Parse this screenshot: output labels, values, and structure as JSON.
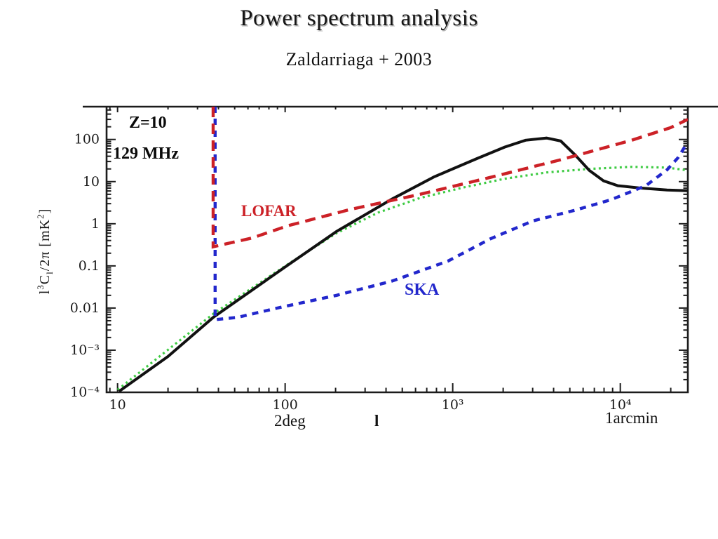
{
  "slide": {
    "title": "Power spectrum analysis",
    "subtitle": "Zaldarriaga + 2003"
  },
  "annotations": {
    "redshift": "Z=10",
    "frequency": "129 MHz",
    "lofar_label": "LOFAR",
    "ska_label": "SKA",
    "two_deg_scale": "2deg",
    "x_symbol": "l",
    "one_arcmin_scale": "1arcmin"
  },
  "colors": {
    "signal": "#111111",
    "lofar": "#cc2127",
    "ska": "#2227cc",
    "green_dotted": "#3ecb43",
    "axis": "#1c1c1c"
  },
  "chart_data": {
    "type": "line",
    "title": "",
    "xlabel": "l",
    "ylabel": "l^3 C_l / 2pi [mK^2]",
    "ylabel_parts": {
      "p0": "l",
      "p1": "3",
      "p2": "C",
      "p3": "l",
      "p4": "/2π  [mK",
      "p5": "2",
      "p6": "]"
    },
    "x_axis": {
      "scale": "log",
      "min": 8.6,
      "max": 25300,
      "major_ticks": [
        10,
        100,
        1000,
        10000
      ],
      "major_tick_labels": [
        "10",
        "100",
        "10³",
        "10⁴"
      ]
    },
    "y_axis": {
      "scale": "log",
      "min": 0.0001,
      "max": 600,
      "major_ticks": [
        100,
        10,
        1,
        0.1,
        0.01,
        0.001,
        0.0001
      ],
      "major_tick_labels": [
        "100",
        "10",
        "1",
        "0.1",
        "0.01",
        "10⁻³",
        "10⁻⁴"
      ]
    },
    "series": [
      {
        "name": "green-dotted-spectrum",
        "color": "#3ecb43",
        "style": "dot",
        "width": 3.2,
        "points": [
          [
            10,
            0.000115
          ],
          [
            37.4,
            0.0074
          ],
          [
            104,
            0.11
          ],
          [
            203,
            0.6
          ],
          [
            360,
            1.85
          ],
          [
            640,
            4.1
          ],
          [
            1150,
            7.2
          ],
          [
            2040,
            11.7
          ],
          [
            3630,
            16.5
          ],
          [
            6530,
            20
          ],
          [
            11700,
            22.4
          ],
          [
            19000,
            21.5
          ],
          [
            25300,
            18.5
          ]
        ]
      },
      {
        "name": "signal-black-solid",
        "color": "#111111",
        "style": "solid",
        "width": 4,
        "points": [
          [
            10.2,
            0.000105
          ],
          [
            20,
            0.00071
          ],
          [
            37.4,
            0.0061
          ],
          [
            104,
            0.105
          ],
          [
            203,
            0.66
          ],
          [
            246,
            1.03
          ],
          [
            437,
            3.9
          ],
          [
            776,
            13
          ],
          [
            1390,
            35
          ],
          [
            2040,
            66
          ],
          [
            2720,
            96
          ],
          [
            3630,
            108
          ],
          [
            4410,
            92
          ],
          [
            5370,
            43
          ],
          [
            6530,
            18.5
          ],
          [
            7950,
            10.4
          ],
          [
            9670,
            8.0
          ],
          [
            12900,
            7.1
          ],
          [
            19000,
            6.3
          ],
          [
            25300,
            6.1
          ]
        ]
      },
      {
        "name": "ska-noise",
        "color": "#2227cc",
        "style": "dash",
        "width": 4.4,
        "points": [
          [
            38.2,
            600
          ],
          [
            38.2,
            0.0053
          ],
          [
            52,
            0.006
          ],
          [
            93,
            0.0103
          ],
          [
            203,
            0.02
          ],
          [
            437,
            0.044
          ],
          [
            937,
            0.13
          ],
          [
            1680,
            0.44
          ],
          [
            3000,
            1.16
          ],
          [
            5370,
            2.1
          ],
          [
            8770,
            3.7
          ],
          [
            14200,
            8.0
          ],
          [
            19000,
            19
          ],
          [
            22100,
            37
          ],
          [
            24200,
            66
          ]
        ]
      },
      {
        "name": "lofar-noise",
        "color": "#cc2127",
        "style": "long-dash",
        "width": 4.4,
        "points": [
          [
            37.2,
            600
          ],
          [
            37.2,
            0.285
          ],
          [
            63.5,
            0.46
          ],
          [
            104,
            0.9
          ],
          [
            246,
            2.2
          ],
          [
            640,
            5.0
          ],
          [
            1680,
            12.6
          ],
          [
            4410,
            33
          ],
          [
            11700,
            96
          ],
          [
            19900,
            190
          ],
          [
            25300,
            300
          ]
        ]
      }
    ]
  }
}
